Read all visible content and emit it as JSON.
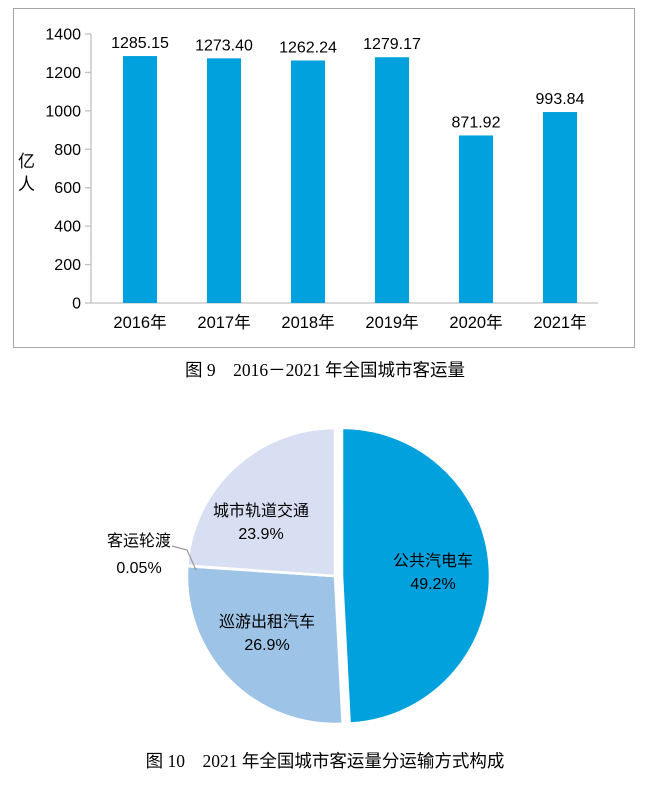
{
  "colors": {
    "bar": "#00A1DC",
    "pie_bus": "#00A1DC",
    "pie_taxi": "#9DC3E6",
    "pie_rail": "#D9DFF2",
    "pie_ferry": "#FFFFFF",
    "axis": "#C0C0C0",
    "frame_border": "#A6A6A6",
    "leader_line": "#999999",
    "text": "#000000"
  },
  "chart_data": [
    {
      "type": "bar",
      "title": "图 9　2016－2021 年全国城市客运量",
      "categories": [
        "2016年",
        "2017年",
        "2018年",
        "2019年",
        "2020年",
        "2021年"
      ],
      "values": [
        1285.15,
        1273.4,
        1262.24,
        1279.17,
        871.92,
        993.84
      ],
      "value_labels": [
        "1285.15",
        "1273.40",
        "1262.24",
        "1279.17",
        "871.92",
        "993.84"
      ],
      "xlabel": "",
      "ylabel": "亿人",
      "ylim": [
        0,
        1400
      ],
      "yticks": [
        0,
        200,
        400,
        600,
        800,
        1000,
        1200,
        1400
      ],
      "grid": false,
      "legend": "none",
      "bar_color": "#00A1DC"
    },
    {
      "type": "pie",
      "title": "图 10　2021 年全国城市客运量分运输方式构成",
      "start_angle_deg": 0,
      "direction": "clockwise",
      "legend": "none",
      "slices": [
        {
          "label": "公共汽电车",
          "value": 49.2,
          "pct_label": "49.2%",
          "color": "#00A1DC",
          "exploded": true
        },
        {
          "label": "巡游出租汽车",
          "value": 26.9,
          "pct_label": "26.9%",
          "color": "#9DC3E6",
          "exploded": false
        },
        {
          "label": "客运轮渡",
          "value": 0.05,
          "pct_label": "0.05%",
          "color": "#FFFFFF",
          "exploded": false,
          "external_label": true
        },
        {
          "label": "城市轨道交通",
          "value": 23.9,
          "pct_label": "23.9%",
          "color": "#D9DFF2",
          "exploded": false
        }
      ]
    }
  ]
}
